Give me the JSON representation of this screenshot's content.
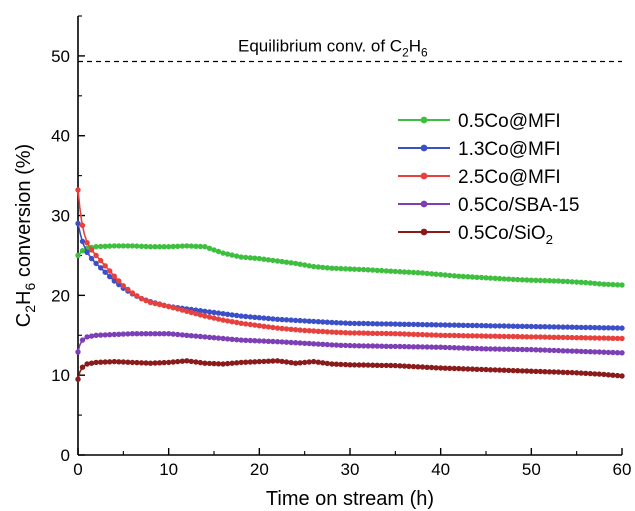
{
  "chart_data": {
    "type": "line",
    "xlabel": "Time on stream (h)",
    "ylabel_parts": [
      "C",
      "2",
      "H",
      "6",
      " conversion (%)"
    ],
    "xlim": [
      0,
      60
    ],
    "ylim": [
      0,
      55
    ],
    "xticks": [
      0,
      10,
      20,
      30,
      40,
      50,
      60
    ],
    "yticks": [
      0,
      10,
      20,
      30,
      40,
      50
    ],
    "grid": false,
    "legend_position": "right",
    "reference_line": {
      "y": 49.3,
      "style": "dashed",
      "label_parts": [
        "Equilibrium conv. of C",
        "2",
        "H",
        "6"
      ]
    },
    "series": [
      {
        "name_parts": [
          "0.5Co@MFI"
        ],
        "color": "#3fbf3f",
        "points": [
          [
            0,
            25.0
          ],
          [
            0.5,
            25.6
          ],
          [
            1,
            25.9
          ],
          [
            2,
            26.1
          ],
          [
            4,
            26.2
          ],
          [
            6,
            26.2
          ],
          [
            8,
            26.1
          ],
          [
            10,
            26.1
          ],
          [
            12,
            26.2
          ],
          [
            14,
            26.1
          ],
          [
            16,
            25.3
          ],
          [
            18,
            24.8
          ],
          [
            20,
            24.6
          ],
          [
            22,
            24.3
          ],
          [
            24,
            24.0
          ],
          [
            26,
            23.6
          ],
          [
            28,
            23.4
          ],
          [
            30,
            23.3
          ],
          [
            32,
            23.2
          ],
          [
            35,
            23.0
          ],
          [
            38,
            22.8
          ],
          [
            40,
            22.6
          ],
          [
            42,
            22.4
          ],
          [
            45,
            22.2
          ],
          [
            48,
            22.0
          ],
          [
            50,
            21.9
          ],
          [
            53,
            21.8
          ],
          [
            56,
            21.6
          ],
          [
            58,
            21.4
          ],
          [
            60,
            21.3
          ]
        ]
      },
      {
        "name_parts": [
          "1.3Co@MFI"
        ],
        "color": "#3a4fc8",
        "points": [
          [
            0,
            29.0
          ],
          [
            0.3,
            27.5
          ],
          [
            0.6,
            26.4
          ],
          [
            1,
            25.4
          ],
          [
            1.5,
            24.6
          ],
          [
            2,
            24.0
          ],
          [
            3,
            22.9
          ],
          [
            4,
            21.8
          ],
          [
            5,
            20.9
          ],
          [
            6,
            20.2
          ],
          [
            7,
            19.6
          ],
          [
            8,
            19.2
          ],
          [
            10,
            18.6
          ],
          [
            12,
            18.3
          ],
          [
            14,
            18.0
          ],
          [
            16,
            17.7
          ],
          [
            18,
            17.4
          ],
          [
            20,
            17.2
          ],
          [
            22,
            17.0
          ],
          [
            25,
            16.8
          ],
          [
            28,
            16.6
          ],
          [
            30,
            16.5
          ],
          [
            35,
            16.4
          ],
          [
            40,
            16.3
          ],
          [
            45,
            16.2
          ],
          [
            50,
            16.1
          ],
          [
            55,
            16.0
          ],
          [
            60,
            15.9
          ]
        ]
      },
      {
        "name_parts": [
          "2.5Co@MFI"
        ],
        "color": "#e8403c",
        "points": [
          [
            0,
            33.2
          ],
          [
            0.2,
            31.0
          ],
          [
            0.4,
            29.3
          ],
          [
            0.7,
            27.7
          ],
          [
            1,
            26.6
          ],
          [
            1.5,
            25.7
          ],
          [
            2,
            25.0
          ],
          [
            3,
            23.7
          ],
          [
            4,
            22.4
          ],
          [
            5,
            21.2
          ],
          [
            6,
            20.3
          ],
          [
            7,
            19.6
          ],
          [
            8,
            19.1
          ],
          [
            10,
            18.6
          ],
          [
            12,
            18.0
          ],
          [
            14,
            17.4
          ],
          [
            16,
            16.9
          ],
          [
            18,
            16.5
          ],
          [
            20,
            16.2
          ],
          [
            22,
            15.9
          ],
          [
            25,
            15.6
          ],
          [
            28,
            15.4
          ],
          [
            30,
            15.3
          ],
          [
            35,
            15.2
          ],
          [
            40,
            15.0
          ],
          [
            45,
            14.9
          ],
          [
            50,
            14.8
          ],
          [
            55,
            14.7
          ],
          [
            60,
            14.6
          ]
        ]
      },
      {
        "name_parts": [
          "0.5Co/SBA-15"
        ],
        "color": "#7d3fb5",
        "points": [
          [
            0,
            12.9
          ],
          [
            0.2,
            13.8
          ],
          [
            0.5,
            14.4
          ],
          [
            1,
            14.8
          ],
          [
            2,
            15.0
          ],
          [
            4,
            15.1
          ],
          [
            6,
            15.2
          ],
          [
            8,
            15.2
          ],
          [
            10,
            15.2
          ],
          [
            12,
            15.0
          ],
          [
            14,
            14.8
          ],
          [
            16,
            14.6
          ],
          [
            18,
            14.4
          ],
          [
            20,
            14.3
          ],
          [
            22,
            14.2
          ],
          [
            25,
            14.0
          ],
          [
            28,
            13.8
          ],
          [
            30,
            13.7
          ],
          [
            35,
            13.6
          ],
          [
            40,
            13.5
          ],
          [
            45,
            13.3
          ],
          [
            50,
            13.2
          ],
          [
            55,
            13.0
          ],
          [
            60,
            12.8
          ]
        ]
      },
      {
        "name_parts": [
          "0.5Co/SiO",
          "2"
        ],
        "color": "#8b1a1a",
        "points": [
          [
            0,
            9.5
          ],
          [
            0.2,
            10.4
          ],
          [
            0.5,
            11.0
          ],
          [
            1,
            11.4
          ],
          [
            2,
            11.6
          ],
          [
            4,
            11.7
          ],
          [
            6,
            11.6
          ],
          [
            8,
            11.5
          ],
          [
            10,
            11.6
          ],
          [
            12,
            11.8
          ],
          [
            14,
            11.5
          ],
          [
            16,
            11.4
          ],
          [
            18,
            11.6
          ],
          [
            20,
            11.7
          ],
          [
            22,
            11.8
          ],
          [
            24,
            11.5
          ],
          [
            26,
            11.7
          ],
          [
            28,
            11.4
          ],
          [
            30,
            11.3
          ],
          [
            35,
            11.2
          ],
          [
            40,
            10.9
          ],
          [
            45,
            10.7
          ],
          [
            50,
            10.5
          ],
          [
            55,
            10.3
          ],
          [
            58,
            10.1
          ],
          [
            60,
            9.9
          ]
        ]
      }
    ]
  }
}
